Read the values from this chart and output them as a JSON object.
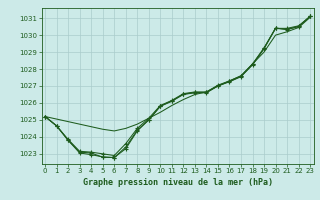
{
  "title": "Graphe pression niveau de la mer (hPa)",
  "bg_color": "#cceae8",
  "grid_color": "#aacccc",
  "line_color": "#1e5c1e",
  "x_ticks": [
    0,
    1,
    2,
    3,
    4,
    5,
    6,
    7,
    8,
    9,
    10,
    11,
    12,
    13,
    14,
    15,
    16,
    17,
    18,
    19,
    20,
    21,
    22,
    23
  ],
  "y_ticks": [
    1023,
    1024,
    1025,
    1026,
    1027,
    1028,
    1029,
    1030,
    1031
  ],
  "ylim": [
    1022.4,
    1031.6
  ],
  "xlim": [
    -0.3,
    23.3
  ],
  "s1": [
    1025.2,
    1024.65,
    1023.8,
    1023.1,
    1023.05,
    1022.8,
    1022.78,
    1023.3,
    1024.35,
    1025.0,
    1025.8,
    1026.1,
    1026.5,
    1026.6,
    1026.6,
    1027.0,
    1027.25,
    1027.55,
    1028.25,
    1029.2,
    1030.4,
    1030.35,
    1030.5,
    1031.1
  ],
  "s2": [
    1025.2,
    1024.65,
    1023.85,
    1023.15,
    1023.1,
    1023.0,
    1022.9,
    1023.6,
    1024.5,
    1025.1,
    1025.85,
    1026.15,
    1026.55,
    1026.65,
    1026.65,
    1027.05,
    1027.3,
    1027.6,
    1028.3,
    1029.25,
    1030.4,
    1030.4,
    1030.55,
    1031.1
  ],
  "s3_straight": [
    1025.2,
    1025.05,
    1024.9,
    1024.75,
    1024.6,
    1024.45,
    1024.35,
    1024.5,
    1024.75,
    1025.1,
    1025.45,
    1025.85,
    1026.2,
    1026.5,
    1026.65,
    1027.0,
    1027.3,
    1027.6,
    1028.3,
    1029.0,
    1030.0,
    1030.2,
    1030.45,
    1031.05
  ],
  "s4": [
    1025.2,
    1024.65,
    1023.8,
    1023.05,
    1022.95,
    1022.82,
    1022.78,
    1023.4,
    1024.4,
    1025.0,
    1025.82,
    1026.12,
    1026.52,
    1026.62,
    1026.62,
    1027.02,
    1027.27,
    1027.57,
    1028.27,
    1029.22,
    1030.42,
    1030.32,
    1030.52,
    1031.12
  ],
  "tick_fontsize": 5,
  "label_fontsize": 6,
  "lw": 0.75,
  "ms": 2.5
}
